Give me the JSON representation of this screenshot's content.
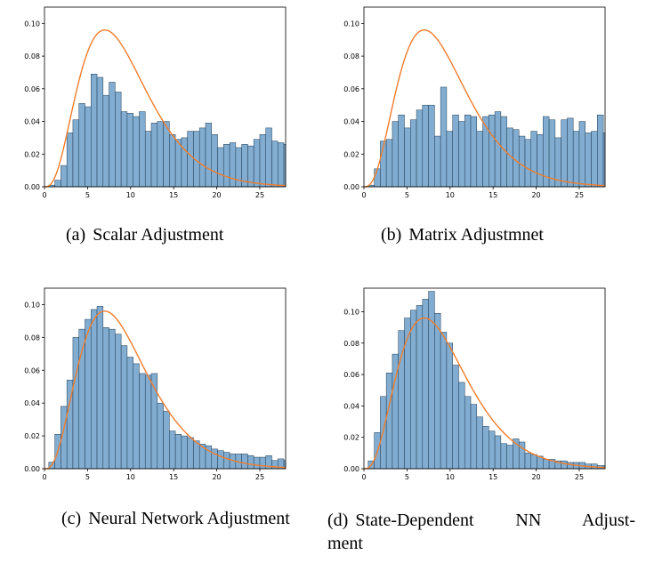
{
  "panels": [
    {
      "id": "a",
      "caption_label": "(a)",
      "caption_text": "Scalar Adjustment",
      "chart_data": {
        "type": "bar",
        "xlim": [
          0,
          28
        ],
        "ylim": [
          0,
          0.11
        ],
        "xticks": [
          0,
          5,
          10,
          15,
          20,
          25
        ],
        "yticks": [
          0.0,
          0.02,
          0.04,
          0.06,
          0.08,
          0.1
        ],
        "ytick_labels": [
          "0.00",
          "0.02",
          "0.04",
          "0.06",
          "0.08",
          "0.10"
        ],
        "bin_start": 0.5,
        "bin_width": 0.7,
        "values": [
          0.001,
          0.004,
          0.013,
          0.033,
          0.041,
          0.051,
          0.049,
          0.069,
          0.067,
          0.056,
          0.064,
          0.058,
          0.046,
          0.045,
          0.043,
          0.046,
          0.034,
          0.039,
          0.04,
          0.04,
          0.032,
          0.029,
          0.03,
          0.034,
          0.034,
          0.036,
          0.039,
          0.032,
          0.024,
          0.026,
          0.027,
          0.024,
          0.026,
          0.025,
          0.029,
          0.032,
          0.036,
          0.028,
          0.027,
          0.026
        ],
        "curve_type": "gamma",
        "curve_shape": 4.0,
        "curve_scale": 2.3333,
        "bar_color": "#7ba9cf",
        "bar_edge": "#1f3b53",
        "curve_color": "#ef7d2c"
      }
    },
    {
      "id": "b",
      "caption_label": "(b)",
      "caption_text": "Matrix Adjustmnet",
      "chart_data": {
        "type": "bar",
        "xlim": [
          0,
          28
        ],
        "ylim": [
          0,
          0.11
        ],
        "xticks": [
          0,
          5,
          10,
          15,
          20,
          25
        ],
        "yticks": [
          0.0,
          0.02,
          0.04,
          0.06,
          0.08,
          0.1
        ],
        "ytick_labels": [
          "0.00",
          "0.02",
          "0.04",
          "0.06",
          "0.08",
          "0.10"
        ],
        "bin_start": 0.5,
        "bin_width": 0.7,
        "values": [
          0.001,
          0.011,
          0.028,
          0.029,
          0.04,
          0.044,
          0.036,
          0.041,
          0.047,
          0.05,
          0.05,
          0.031,
          0.061,
          0.034,
          0.044,
          0.04,
          0.044,
          0.043,
          0.034,
          0.043,
          0.044,
          0.046,
          0.043,
          0.036,
          0.035,
          0.031,
          0.029,
          0.034,
          0.032,
          0.043,
          0.041,
          0.03,
          0.041,
          0.042,
          0.034,
          0.04,
          0.033,
          0.034,
          0.044,
          0.033,
          0.031
        ],
        "curve_type": "gamma",
        "curve_shape": 4.0,
        "curve_scale": 2.3333,
        "bar_color": "#7ba9cf",
        "bar_edge": "#1f3b53",
        "curve_color": "#ef7d2c"
      }
    },
    {
      "id": "c",
      "caption_label": "(c)",
      "caption_text": "Neural Network Adjustment",
      "chart_data": {
        "type": "bar",
        "xlim": [
          0,
          28
        ],
        "ylim": [
          0,
          0.11
        ],
        "xticks": [
          0,
          5,
          10,
          15,
          20,
          25
        ],
        "yticks": [
          0.0,
          0.02,
          0.04,
          0.06,
          0.08,
          0.1
        ],
        "ytick_labels": [
          "0.00",
          "0.02",
          "0.04",
          "0.06",
          "0.08",
          "0.10"
        ],
        "bin_start": 0.5,
        "bin_width": 0.7,
        "values": [
          0.004,
          0.021,
          0.038,
          0.054,
          0.08,
          0.085,
          0.091,
          0.097,
          0.099,
          0.086,
          0.085,
          0.082,
          0.075,
          0.068,
          0.064,
          0.058,
          0.057,
          0.058,
          0.04,
          0.035,
          0.023,
          0.021,
          0.02,
          0.019,
          0.017,
          0.015,
          0.014,
          0.012,
          0.011,
          0.01,
          0.009,
          0.009,
          0.009,
          0.008,
          0.007,
          0.007,
          0.008,
          0.005,
          0.006,
          0.005
        ],
        "curve_type": "gamma",
        "curve_shape": 4.0,
        "curve_scale": 2.3333,
        "bar_color": "#7ba9cf",
        "bar_edge": "#1f3b53",
        "curve_color": "#ef7d2c"
      }
    },
    {
      "id": "d",
      "caption_label": "(d)",
      "caption_text_line1": "State-Dependent NN Adjust-",
      "caption_text_line2": "ment",
      "chart_data": {
        "type": "bar",
        "xlim": [
          0,
          28
        ],
        "ylim": [
          0,
          0.115
        ],
        "xticks": [
          0,
          5,
          10,
          15,
          20,
          25
        ],
        "yticks": [
          0.0,
          0.02,
          0.04,
          0.06,
          0.08,
          0.1
        ],
        "ytick_labels": [
          "0.00",
          "0.02",
          "0.04",
          "0.06",
          "0.08",
          "0.10"
        ],
        "bin_start": 0.5,
        "bin_width": 0.7,
        "values": [
          0.005,
          0.023,
          0.046,
          0.061,
          0.073,
          0.088,
          0.096,
          0.101,
          0.104,
          0.108,
          0.113,
          0.099,
          0.087,
          0.08,
          0.066,
          0.055,
          0.046,
          0.041,
          0.033,
          0.027,
          0.024,
          0.021,
          0.016,
          0.015,
          0.019,
          0.017,
          0.01,
          0.009,
          0.008,
          0.006,
          0.006,
          0.005,
          0.005,
          0.004,
          0.004,
          0.004,
          0.003,
          0.003,
          0.002,
          0.002
        ],
        "curve_type": "gamma",
        "curve_shape": 4.0,
        "curve_scale": 2.3333,
        "bar_color": "#7ba9cf",
        "bar_edge": "#1f3b53",
        "curve_color": "#ef7d2c"
      }
    }
  ]
}
